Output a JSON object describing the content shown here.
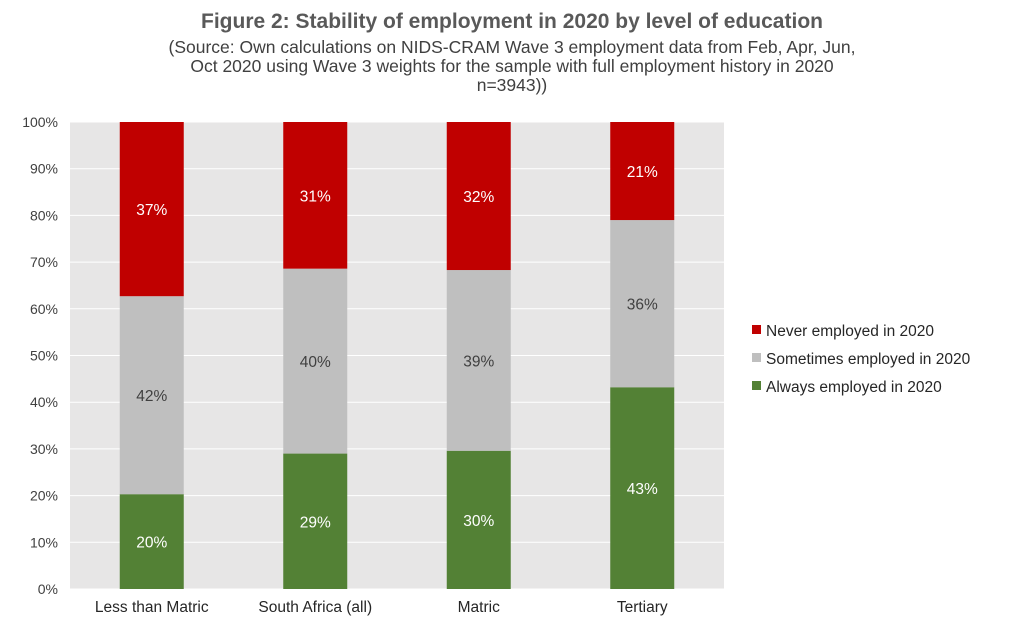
{
  "title": "Figure 2: Stability of employment in 2020 by level of education",
  "subtitle": "(Source: Own calculations on NIDS-CRAM Wave 3 employment data from Feb, Apr, Jun,\nOct 2020 using Wave 3 weights for the sample with full employment history in 2020\nn=3943))",
  "chart_data": {
    "type": "bar",
    "stacked": true,
    "categories": [
      "Less than Matric",
      "South Africa (all)",
      "Matric",
      "Tertiary"
    ],
    "ylim": [
      0,
      100
    ],
    "yticks": [
      "0%",
      "10%",
      "20%",
      "30%",
      "40%",
      "50%",
      "60%",
      "70%",
      "80%",
      "90%",
      "100%"
    ],
    "grid": true,
    "legend_position": "right",
    "series": [
      {
        "name": "Always employed in 2020",
        "color": "#538135",
        "label_color": "#ffffff",
        "values": [
          20.3,
          29.0,
          29.6,
          43.2
        ],
        "labels": [
          "20%",
          "29%",
          "30%",
          "43%"
        ]
      },
      {
        "name": "Sometimes employed in 2020",
        "color": "#bfbfbf",
        "label_color": "#404040",
        "values": [
          42.4,
          39.6,
          38.7,
          35.8
        ],
        "labels": [
          "42%",
          "40%",
          "39%",
          "36%"
        ]
      },
      {
        "name": "Never employed in 2020",
        "color": "#c00000",
        "label_color": "#ffffff",
        "values": [
          37.3,
          31.4,
          31.7,
          21.0
        ],
        "labels": [
          "37%",
          "31%",
          "32%",
          "21%"
        ]
      }
    ]
  }
}
